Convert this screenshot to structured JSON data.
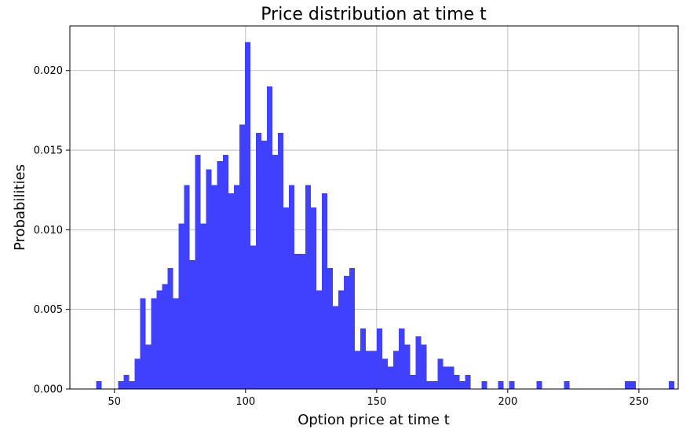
{
  "chart_data": {
    "type": "bar",
    "title": "Price distribution at time t",
    "xlabel": "Option price at time t",
    "ylabel": "Probabilities",
    "xlim": [
      33,
      265
    ],
    "ylim": [
      0,
      0.0228
    ],
    "xticks": [
      50,
      100,
      150,
      200,
      250
    ],
    "yticks": [
      0.0,
      0.005,
      0.01,
      0.015,
      0.02
    ],
    "ytick_labels": [
      "0.000",
      "0.005",
      "0.010",
      "0.015",
      "0.020"
    ],
    "grid": true,
    "bar_color": "#4040ff",
    "bin_start": 43,
    "bin_width": 2.1,
    "values": [
      0.0005,
      0,
      0,
      0,
      0.0005,
      0.0009,
      0.0005,
      0.0019,
      0.0057,
      0.0028,
      0.0057,
      0.0062,
      0.0066,
      0.0076,
      0.0057,
      0.0104,
      0.0128,
      0.0081,
      0.0147,
      0.0104,
      0.0138,
      0.0128,
      0.0143,
      0.0147,
      0.0123,
      0.0128,
      0.0166,
      0.0218,
      0.009,
      0.0161,
      0.0156,
      0.019,
      0.0147,
      0.0161,
      0.0114,
      0.0128,
      0.0085,
      0.0085,
      0.0128,
      0.0114,
      0.0062,
      0.0123,
      0.0076,
      0.0052,
      0.0062,
      0.0071,
      0.0076,
      0.0024,
      0.0038,
      0.0024,
      0.0024,
      0.0038,
      0.0019,
      0.0014,
      0.0024,
      0.0038,
      0.0028,
      0.0009,
      0.0033,
      0.0028,
      0.0005,
      0.0005,
      0.0019,
      0.0014,
      0.0014,
      0.0009,
      0.0005,
      0.0009,
      0,
      0,
      0.0005,
      0,
      0,
      0.0005,
      0,
      0.0005,
      0,
      0,
      0,
      0,
      0.0005,
      0,
      0,
      0,
      0,
      0.0005,
      0,
      0,
      0,
      0,
      0,
      0,
      0,
      0,
      0,
      0,
      0.0005,
      0.0005,
      0,
      0,
      0,
      0,
      0,
      0,
      0.0005
    ]
  }
}
